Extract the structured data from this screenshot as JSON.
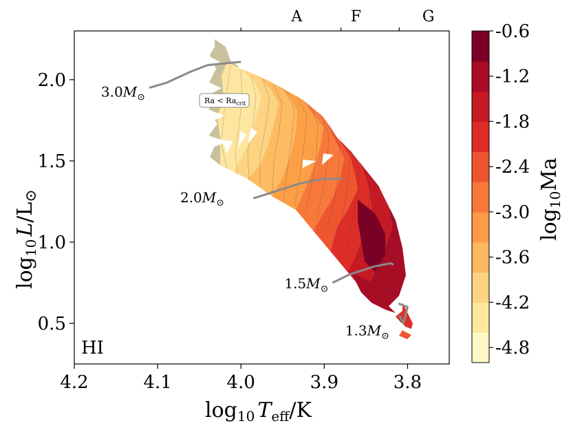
{
  "chart_data": {
    "type": "contour",
    "panel_label": "HI",
    "xlabel_base": "log",
    "xlabel_sub": "10",
    "xlabel_var": "T",
    "xlabel_var_sub": "eff",
    "xlabel_unit": "/K",
    "ylabel_base": "log",
    "ylabel_sub": "10",
    "ylabel_var": "L",
    "ylabel_unit": "/L",
    "xlim": [
      4.2,
      3.75
    ],
    "ylim": [
      0.25,
      2.3
    ],
    "x_ticks": [
      4.2,
      4.1,
      4.0,
      3.9,
      3.8
    ],
    "x_tick_labels": [
      "4.2",
      "4.1",
      "4.0",
      "3.9",
      "3.8"
    ],
    "y_ticks": [
      0.5,
      1.0,
      1.5,
      2.0
    ],
    "y_tick_labels": [
      "0.5",
      "1.0",
      "1.5",
      "2.0"
    ],
    "spectral_types": [
      {
        "label": "A",
        "x": 3.933
      },
      {
        "label": "F",
        "x": 3.862
      },
      {
        "label": "G",
        "x": 3.775
      }
    ],
    "spectral_boundaries": [
      4.0,
      3.88,
      3.81
    ],
    "colorbar": {
      "label_base": "log",
      "label_sub": "10",
      "label_var": "Ma",
      "min": -5.0,
      "max": -0.6,
      "ticks": [
        -0.6,
        -1.2,
        -1.8,
        -2.4,
        -3.0,
        -3.6,
        -4.2,
        -4.8
      ],
      "tick_labels": [
        "-0.6",
        "-1.2",
        "-1.8",
        "-2.4",
        "-3.0",
        "-3.6",
        "-4.2",
        "-4.8"
      ],
      "colors": [
        "#fff8c6",
        "#fee8a0",
        "#fdd280",
        "#fdb860",
        "#fc9a45",
        "#f8773a",
        "#ee5330",
        "#dd2b26",
        "#c51a24",
        "#a70d25",
        "#7a0126"
      ]
    },
    "annotation": {
      "text_main": "Ra < Ra",
      "text_sub": "crit",
      "x": 4.002,
      "y": 1.8
    },
    "tracks": [
      {
        "name": "3.0",
        "label": "3.0",
        "x": [
          4.11,
          4.09,
          4.06,
          4.04,
          4.0
        ],
        "y": [
          1.95,
          1.98,
          2.05,
          2.09,
          2.11
        ],
        "label_x": 4.115,
        "label_y": 1.93
      },
      {
        "name": "2.0",
        "label": "2.0",
        "x": [
          3.985,
          3.96,
          3.93,
          3.9,
          3.878
        ],
        "y": [
          1.27,
          1.31,
          1.36,
          1.39,
          1.39
        ],
        "label_x": 4.02,
        "label_y": 1.28
      },
      {
        "name": "1.5",
        "label": "1.5",
        "x": [
          3.89,
          3.87,
          3.84,
          3.82,
          3.817
        ],
        "y": [
          0.75,
          0.8,
          0.85,
          0.87,
          0.86
        ],
        "label_x": 3.895,
        "label_y": 0.75
      },
      {
        "name": "1.3",
        "label": "1.3",
        "x": [
          3.81,
          3.805,
          3.8,
          3.81,
          3.8
        ],
        "y": [
          0.55,
          0.5,
          0.6,
          0.62,
          0.6
        ],
        "label_x": 3.822,
        "label_y": 0.46
      }
    ],
    "mass_unit": "M",
    "sun_symbol": "⊙"
  }
}
